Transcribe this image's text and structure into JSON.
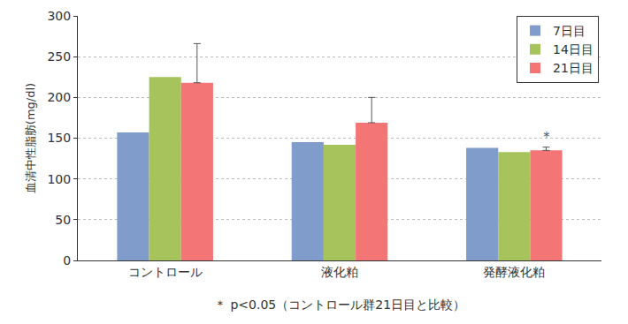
{
  "chart_data": {
    "type": "bar",
    "y_label": "血清中性脂肪(mg/dl)",
    "categories": [
      "コントロール",
      "液化粕",
      "発酵液化粕"
    ],
    "series": [
      {
        "name": "7日目",
        "color": "#7f9ccb",
        "values": [
          157,
          145,
          138
        ]
      },
      {
        "name": "14日目",
        "color": "#a6c35c",
        "values": [
          225,
          142,
          133
        ]
      },
      {
        "name": "21日目",
        "color": "#f47575",
        "values": [
          218,
          169,
          135
        ],
        "error_plus": [
          48,
          31,
          4
        ]
      }
    ],
    "ylim": [
      0,
      300
    ],
    "yticks": [
      0,
      50,
      100,
      150,
      200,
      250,
      300
    ],
    "grid": true,
    "legend": "top-right",
    "annotations": [
      {
        "text": "＊",
        "category": "発酵液化粕",
        "series": "21日目"
      }
    ],
    "footnote": "＊ p<0.05（コントロール群21日目と比較）"
  }
}
